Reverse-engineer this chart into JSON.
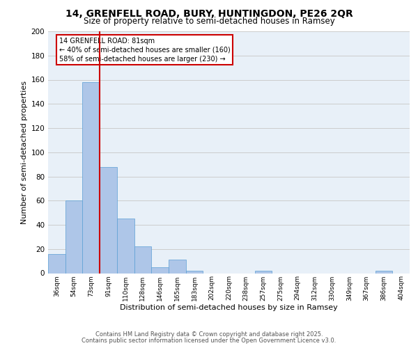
{
  "title1": "14, GRENFELL ROAD, BURY, HUNTINGDON, PE26 2QR",
  "title2": "Size of property relative to semi-detached houses in Ramsey",
  "xlabel": "Distribution of semi-detached houses by size in Ramsey",
  "ylabel": "Number of semi-detached properties",
  "categories": [
    "36sqm",
    "54sqm",
    "73sqm",
    "91sqm",
    "110sqm",
    "128sqm",
    "146sqm",
    "165sqm",
    "183sqm",
    "202sqm",
    "220sqm",
    "238sqm",
    "257sqm",
    "275sqm",
    "294sqm",
    "312sqm",
    "330sqm",
    "349sqm",
    "367sqm",
    "386sqm",
    "404sqm"
  ],
  "values": [
    16,
    60,
    158,
    88,
    45,
    22,
    5,
    11,
    2,
    0,
    0,
    0,
    2,
    0,
    0,
    0,
    0,
    0,
    0,
    2,
    0
  ],
  "bar_color": "#aec6e8",
  "bar_edge_color": "#5a9fd4",
  "grid_color": "#cccccc",
  "bg_color": "#e8f0f8",
  "vline_color": "#cc0000",
  "annotation_title": "14 GRENFELL ROAD: 81sqm",
  "annotation_line1": "← 40% of semi-detached houses are smaller (160)",
  "annotation_line2": "58% of semi-detached houses are larger (230) →",
  "annotation_box_color": "#cc0000",
  "footer1": "Contains HM Land Registry data © Crown copyright and database right 2025.",
  "footer2": "Contains public sector information licensed under the Open Government Licence v3.0.",
  "ylim": [
    0,
    200
  ],
  "yticks": [
    0,
    20,
    40,
    60,
    80,
    100,
    120,
    140,
    160,
    180,
    200
  ],
  "title1_fontsize": 10,
  "title2_fontsize": 8.5,
  "ylabel_fontsize": 8,
  "xlabel_fontsize": 8,
  "ytick_fontsize": 7.5,
  "xtick_fontsize": 6.5,
  "footer_fontsize": 6,
  "ann_fontsize": 7
}
